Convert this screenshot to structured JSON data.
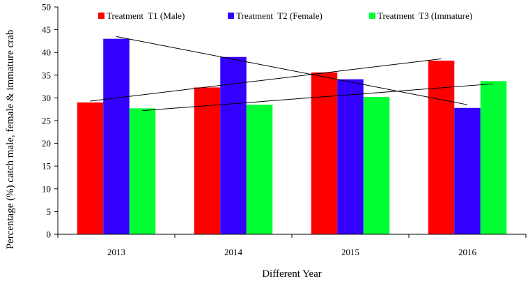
{
  "chart_data": {
    "type": "bar",
    "categories": [
      "2013",
      "2014",
      "2015",
      "2016"
    ],
    "series": [
      {
        "name": "Treatment  T1 (Male)",
        "color": "#ff0000",
        "values": [
          29.0,
          32.3,
          35.6,
          38.2
        ]
      },
      {
        "name": "Treatment  T2 (Female)",
        "color": "#3300ff",
        "values": [
          43.0,
          39.0,
          34.1,
          27.8
        ]
      },
      {
        "name": "Treatment  T3 (Immature)",
        "color": "#00ff33",
        "values": [
          27.7,
          28.5,
          30.2,
          33.7
        ]
      }
    ],
    "trendlines": [
      {
        "series": "Treatment  T1 (Male)",
        "start": 29.3,
        "end": 38.6
      },
      {
        "series": "Treatment  T2 (Female)",
        "start": 43.5,
        "end": 28.5
      },
      {
        "series": "Treatment  T3 (Immature)",
        "start": 27.2,
        "end": 33.1
      }
    ],
    "xlabel": "Different Year",
    "ylabel": "Percentage (%) catch male, female & immature crab",
    "ylim": [
      0,
      50
    ],
    "yticks": [
      "0",
      "5",
      "10",
      "15",
      "20",
      "25",
      "30",
      "35",
      "40",
      "45",
      "50"
    ],
    "legend_position": "top",
    "grid": false
  }
}
